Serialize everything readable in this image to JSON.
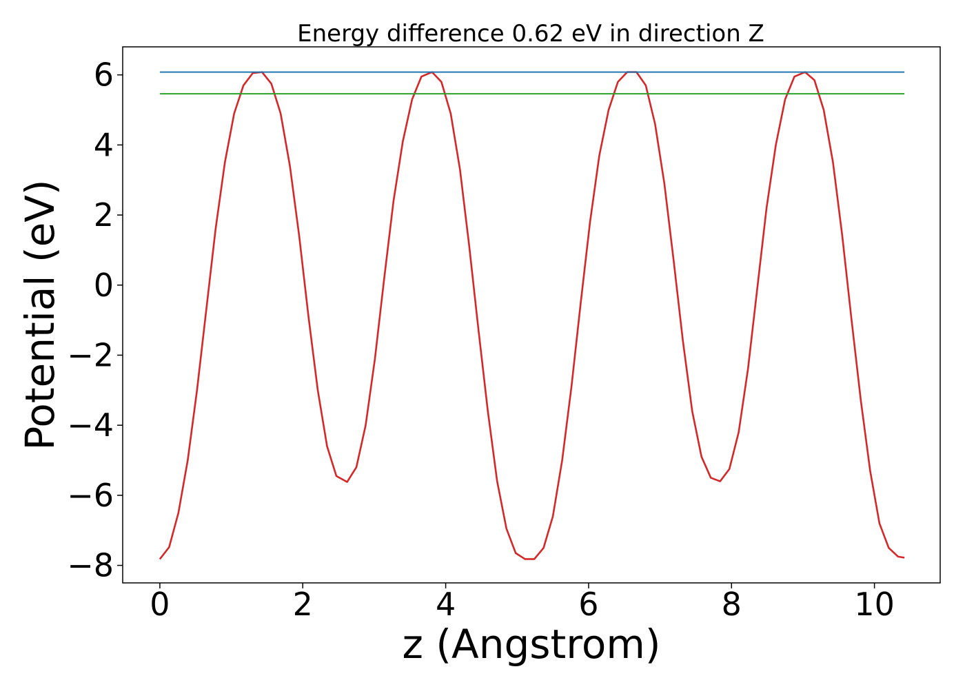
{
  "chart_data": {
    "type": "line",
    "title": "Energy difference 0.62 eV in direction Z",
    "xlabel": "z (Angstrom)",
    "ylabel": "Potential (eV)",
    "xlim": [
      -0.52,
      10.92
    ],
    "ylim": [
      -8.5,
      6.8
    ],
    "xticks": [
      0,
      2,
      4,
      6,
      8,
      10
    ],
    "yticks": [
      -8,
      -6,
      -4,
      -2,
      0,
      2,
      4,
      6
    ],
    "xtick_labels": [
      "0",
      "2",
      "4",
      "6",
      "8",
      "10"
    ],
    "ytick_labels": [
      "−8",
      "−6",
      "−4",
      "−2",
      "0",
      "2",
      "4",
      "6"
    ],
    "grid": false,
    "legend": "none",
    "series": [
      {
        "color": "#d62728",
        "x": [
          0.0,
          0.13,
          0.26,
          0.39,
          0.52,
          0.65,
          0.78,
          0.91,
          1.04,
          1.17,
          1.3,
          1.43,
          1.56,
          1.69,
          1.82,
          1.95,
          2.08,
          2.21,
          2.34,
          2.47,
          2.62,
          2.75,
          2.88,
          3.01,
          3.14,
          3.27,
          3.4,
          3.53,
          3.66,
          3.81,
          3.94,
          4.07,
          4.2,
          4.33,
          4.46,
          4.59,
          4.72,
          4.85,
          4.98,
          5.11,
          5.24,
          5.37,
          5.5,
          5.63,
          5.76,
          5.89,
          6.02,
          6.15,
          6.28,
          6.41,
          6.54,
          6.67,
          6.8,
          6.93,
          7.06,
          7.19,
          7.32,
          7.45,
          7.58,
          7.71,
          7.84,
          7.97,
          8.1,
          8.23,
          8.36,
          8.49,
          8.62,
          8.75,
          8.88,
          9.03,
          9.16,
          9.29,
          9.42,
          9.55,
          9.68,
          9.81,
          9.94,
          10.07,
          10.2,
          10.33,
          10.42
        ],
        "y": [
          -7.82,
          -7.48,
          -6.5,
          -5.0,
          -3.0,
          -0.7,
          1.6,
          3.5,
          4.9,
          5.7,
          6.05,
          6.08,
          5.75,
          4.9,
          3.4,
          1.4,
          -0.9,
          -3.0,
          -4.6,
          -5.45,
          -5.62,
          -5.2,
          -4.0,
          -2.1,
          0.2,
          2.4,
          4.1,
          5.3,
          5.95,
          6.08,
          5.8,
          4.9,
          3.3,
          1.1,
          -1.3,
          -3.6,
          -5.6,
          -6.95,
          -7.65,
          -7.82,
          -7.82,
          -7.5,
          -6.6,
          -5.0,
          -2.9,
          -0.5,
          1.8,
          3.7,
          5.0,
          5.8,
          6.08,
          6.08,
          5.7,
          4.6,
          2.9,
          0.7,
          -1.6,
          -3.6,
          -4.9,
          -5.5,
          -5.6,
          -5.25,
          -4.2,
          -2.4,
          -0.1,
          2.2,
          4.0,
          5.3,
          5.95,
          6.08,
          5.85,
          5.0,
          3.5,
          1.4,
          -1.0,
          -3.3,
          -5.3,
          -6.8,
          -7.5,
          -7.75,
          -7.78
        ]
      },
      {
        "color": "#1f77b4",
        "x": [
          0.0,
          10.42
        ],
        "y": [
          6.08,
          6.08
        ]
      },
      {
        "color": "#2ca02c",
        "x": [
          0.0,
          10.42
        ],
        "y": [
          5.46,
          5.46
        ]
      }
    ]
  }
}
